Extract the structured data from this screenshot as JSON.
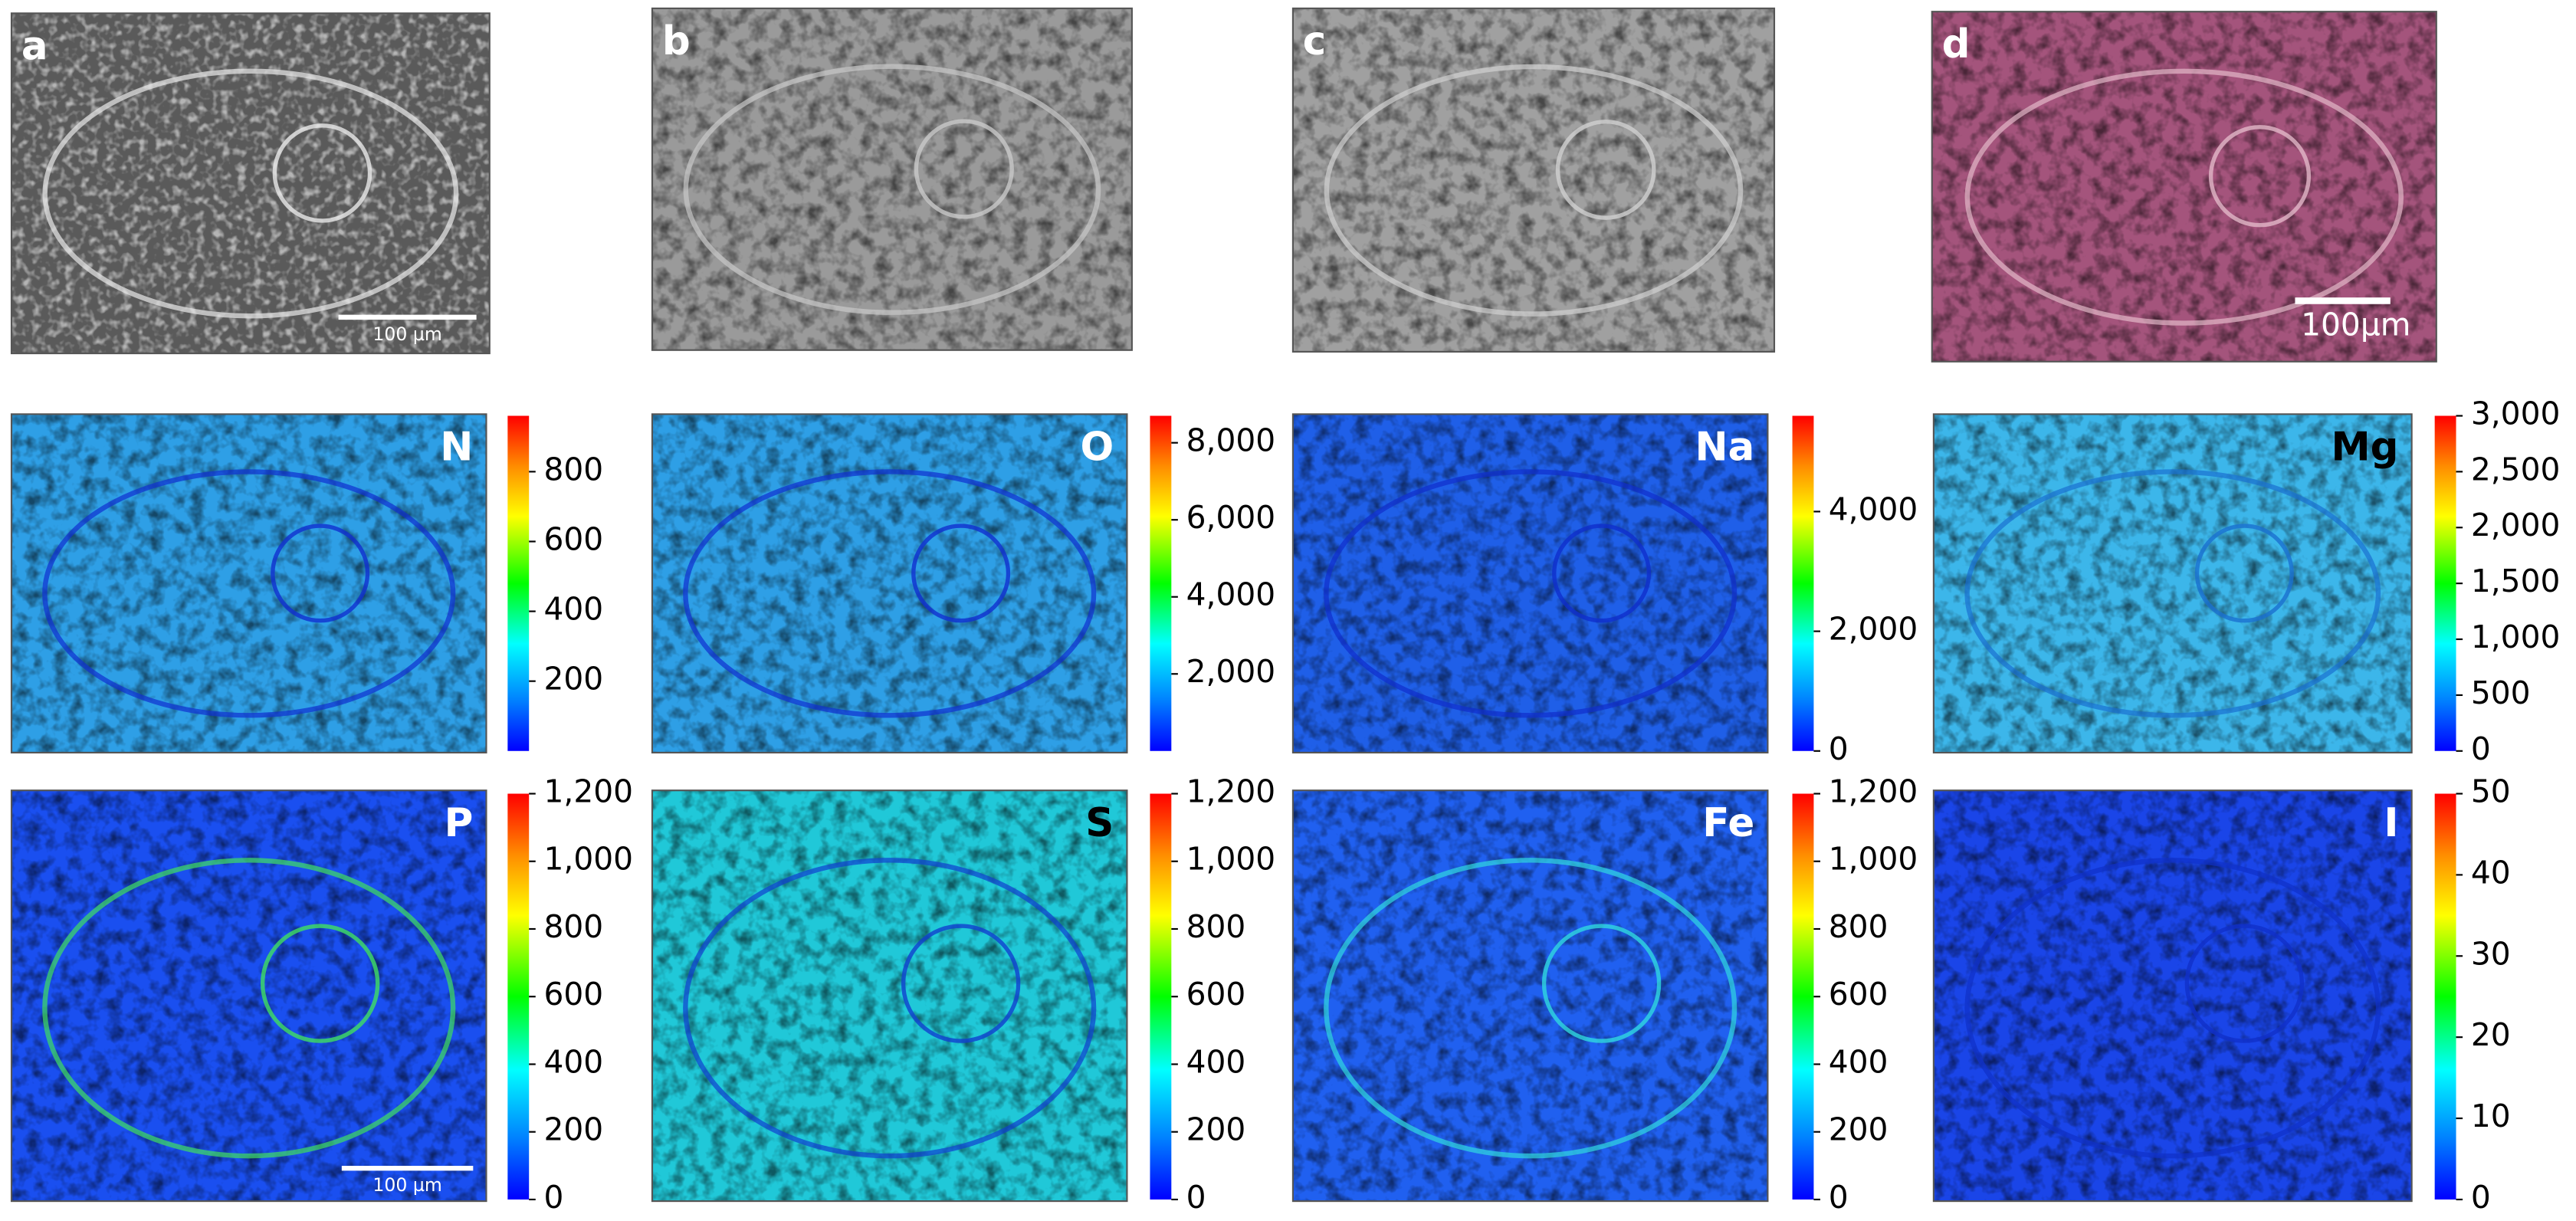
{
  "panels": [
    {
      "label": "a",
      "scale_bar": "100 µm"
    },
    {
      "label": "b"
    },
    {
      "label": "c"
    },
    {
      "label": "d",
      "scale_bar": "100µm"
    }
  ],
  "maps": [
    {
      "element": "N",
      "lim": [
        0,
        960
      ],
      "ticks": [
        200,
        400,
        600,
        800
      ]
    },
    {
      "element": "O",
      "lim": [
        0,
        8700
      ],
      "ticks": [
        {
          "value": 2000,
          "label": "2,000"
        },
        {
          "value": 4000,
          "label": "4,000"
        },
        {
          "value": 6000,
          "label": "6,000"
        },
        {
          "value": 8000,
          "label": "8,000"
        }
      ]
    },
    {
      "element": "Na",
      "lim": [
        0,
        5600
      ],
      "ticks": [
        0,
        {
          "value": 2000,
          "label": "2,000"
        },
        {
          "value": 4000,
          "label": "4,000"
        }
      ]
    },
    {
      "element": "Mg",
      "lim": [
        0,
        3000
      ],
      "ticks": [
        0,
        500,
        {
          "value": 1000,
          "label": "1,000"
        },
        {
          "value": 1500,
          "label": "1,500"
        },
        {
          "value": 2000,
          "label": "2,000"
        },
        {
          "value": 2500,
          "label": "2,500"
        },
        {
          "value": 3000,
          "label": "3,000"
        }
      ]
    },
    {
      "element": "P",
      "lim": [
        0,
        1200
      ],
      "ticks": [
        0,
        200,
        400,
        600,
        800,
        {
          "value": 1000,
          "label": "1,000"
        },
        {
          "value": 1200,
          "label": "1,200"
        }
      ],
      "scale_bar": "100 µm"
    },
    {
      "element": "S",
      "lim": [
        0,
        1200
      ],
      "ticks": [
        0,
        200,
        400,
        600,
        800,
        {
          "value": 1000,
          "label": "1,000"
        },
        {
          "value": 1200,
          "label": "1,200"
        }
      ]
    },
    {
      "element": "Fe",
      "lim": [
        0,
        1200
      ],
      "ticks": [
        0,
        200,
        400,
        600,
        800,
        {
          "value": 1000,
          "label": "1,000"
        },
        {
          "value": 1200,
          "label": "1,200"
        }
      ]
    },
    {
      "element": "I",
      "lim": [
        0,
        50
      ],
      "ticks": [
        0,
        10,
        20,
        30,
        40,
        50
      ]
    }
  ]
}
